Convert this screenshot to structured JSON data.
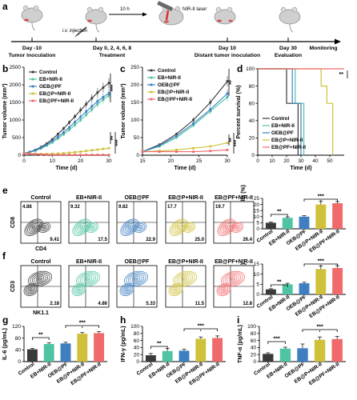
{
  "colors": {
    "control": "#3a3a3a",
    "eb_nir": "#4ec4a3",
    "oeb_pf": "#3d7fc1",
    "ebp_nir": "#cfc13a",
    "ebpf_nir": "#f0696b",
    "mouse": "#c9c9c9",
    "laser": "#d63a3a"
  },
  "panel_labels": [
    "a",
    "b",
    "c",
    "d",
    "e",
    "f",
    "g",
    "h",
    "i"
  ],
  "timeline": {
    "top_label": "10 h",
    "laser_label": "NIR-II laser",
    "injection_label": "i.v. injection",
    "monitoring_label": "Monitoring",
    "steps": [
      {
        "day": "Day -10",
        "event": "Tumor inoculation"
      },
      {
        "day": "Day 0, 2, 4, 6, 8",
        "event": "Treatment"
      },
      {
        "day": "Day 10",
        "event": "Distant tumor inoculation"
      },
      {
        "day": "Day 30",
        "event": "Evaluation"
      }
    ]
  },
  "groups": [
    "Control",
    "EB+NIR-II",
    "OEB@PF",
    "EB@P+NIR-II",
    "EB@PF+NIR-II"
  ],
  "flow_e": {
    "xlabel": "CD4",
    "ylabel": "CD8",
    "panels": [
      {
        "title": "Control",
        "ul": "4.88",
        "lr": "9.41"
      },
      {
        "title": "EB+NIR-II",
        "ul": "9.32",
        "lr": "17.5"
      },
      {
        "title": "OEB@PF",
        "ul": "9.82",
        "lr": "22.9"
      },
      {
        "title": "EB@P+NIR-II",
        "ul": "17.7",
        "lr": "25.0"
      },
      {
        "title": "EB@PF+NIR-II",
        "ul": "19.7",
        "lr": "26.4"
      }
    ]
  },
  "flow_f": {
    "xlabel": "NK1.1",
    "ylabel": "CD3",
    "panels": [
      {
        "title": "Control",
        "lr": "2.18"
      },
      {
        "title": "EB+NIR-II",
        "lr": "4.86"
      },
      {
        "title": "OEB@PF",
        "lr": "5.33"
      },
      {
        "title": "EB@P+NIR-II",
        "lr": "11.5"
      },
      {
        "title": "EB@PF+NIR-II",
        "lr": "12.8"
      }
    ]
  },
  "chart_data": [
    {
      "id": "b",
      "type": "line",
      "xlabel": "Time (d)",
      "ylabel": "Tumor volume (mm³)",
      "xlim": [
        0,
        30
      ],
      "ylim": [
        0,
        2500
      ],
      "xticks": [
        0,
        10,
        20,
        30
      ],
      "yticks": [
        0,
        500,
        1000,
        1500,
        2000,
        2500
      ],
      "x": [
        0,
        2,
        4,
        6,
        8,
        10,
        12,
        14,
        16,
        18,
        20,
        22,
        24,
        26,
        28,
        30
      ],
      "series": [
        {
          "name": "Control",
          "values": [
            50,
            90,
            150,
            230,
            330,
            450,
            600,
            760,
            930,
            1100,
            1280,
            1450,
            1620,
            1780,
            1920,
            2050
          ]
        },
        {
          "name": "EB+NIR-II",
          "values": [
            50,
            80,
            130,
            190,
            270,
            360,
            470,
            590,
            720,
            860,
            1000,
            1150,
            1300,
            1450,
            1580,
            1700
          ]
        },
        {
          "name": "OEB@PF",
          "values": [
            50,
            85,
            140,
            210,
            300,
            400,
            520,
            650,
            790,
            940,
            1090,
            1240,
            1390,
            1530,
            1650,
            1760
          ]
        },
        {
          "name": "EB@P+NIR-II",
          "values": [
            50,
            45,
            40,
            35,
            35,
            40,
            45,
            55,
            70,
            85,
            100,
            120,
            140,
            160,
            180,
            200
          ]
        },
        {
          "name": "EB@PF+NIR-II",
          "values": [
            50,
            40,
            30,
            20,
            15,
            10,
            10,
            10,
            10,
            10,
            10,
            10,
            10,
            10,
            10,
            10
          ]
        }
      ],
      "annotations": [
        "***",
        "**",
        "***"
      ]
    },
    {
      "id": "c",
      "type": "line",
      "xlabel": "Time (d)",
      "ylabel": "Tumor volume (mm³)",
      "xlim": [
        15,
        30
      ],
      "ylim": [
        0,
        250
      ],
      "xticks": [
        15,
        20,
        25,
        30
      ],
      "yticks": [
        0,
        50,
        100,
        150,
        200,
        250
      ],
      "x": [
        15,
        18,
        21,
        24,
        27,
        30
      ],
      "series": [
        {
          "name": "Control",
          "values": [
            10,
            30,
            60,
            100,
            150,
            210
          ]
        },
        {
          "name": "EB+NIR-II",
          "values": [
            10,
            25,
            50,
            85,
            125,
            165
          ]
        },
        {
          "name": "OEB@PF",
          "values": [
            10,
            27,
            55,
            90,
            130,
            175
          ]
        },
        {
          "name": "EB@P+NIR-II",
          "values": [
            10,
            12,
            15,
            20,
            25,
            35
          ]
        },
        {
          "name": "EB@PF+NIR-II",
          "values": [
            10,
            10,
            10,
            10,
            12,
            15
          ]
        }
      ],
      "annotations": [
        "**",
        "**",
        "***"
      ]
    },
    {
      "id": "d",
      "type": "line",
      "xlabel": "Time (d)",
      "ylabel": "Percent survival (%)",
      "xlim": [
        0,
        60
      ],
      "ylim": [
        0,
        100
      ],
      "xticks": [
        0,
        10,
        20,
        30,
        40,
        50
      ],
      "yticks": [
        0,
        20,
        40,
        60,
        80,
        100
      ],
      "series": [
        {
          "name": "Control",
          "points": [
            [
              0,
              100
            ],
            [
              20,
              100
            ],
            [
              20,
              60
            ],
            [
              28,
              60
            ],
            [
              28,
              0
            ]
          ]
        },
        {
          "name": "EB+NIR-II",
          "points": [
            [
              0,
              100
            ],
            [
              26,
              100
            ],
            [
              26,
              60
            ],
            [
              32,
              60
            ],
            [
              32,
              0
            ]
          ]
        },
        {
          "name": "OEB@PF",
          "points": [
            [
              0,
              100
            ],
            [
              24,
              100
            ],
            [
              24,
              60
            ],
            [
              30,
              60
            ],
            [
              30,
              0
            ]
          ]
        },
        {
          "name": "EB@P+NIR-II",
          "points": [
            [
              0,
              100
            ],
            [
              44,
              100
            ],
            [
              44,
              80
            ],
            [
              48,
              80
            ],
            [
              48,
              60
            ],
            [
              52,
              60
            ],
            [
              52,
              0
            ]
          ]
        },
        {
          "name": "EB@PF+NIR-II",
          "points": [
            [
              0,
              100
            ],
            [
              60,
              100
            ]
          ]
        }
      ],
      "annotations": [
        "**"
      ]
    },
    {
      "id": "e-bar",
      "type": "bar",
      "ylabel": "CD3⁺CD8⁺ T cells (%)",
      "ylim": [
        0,
        25
      ],
      "yticks": [
        0,
        5,
        10,
        15,
        20,
        25
      ],
      "categories": [
        "Control",
        "EB+NIR-II",
        "OEB@PF",
        "EB@P+NIR-II",
        "EB@PF+NIR-II"
      ],
      "values": [
        5,
        9,
        10,
        20,
        21
      ],
      "errors": [
        0.6,
        0.8,
        0.8,
        2.5,
        1.4
      ],
      "annotations": [
        "**",
        "***"
      ]
    },
    {
      "id": "f-bar",
      "type": "bar",
      "ylabel": "NK cells (%)",
      "ylim": [
        0,
        15
      ],
      "yticks": [
        0,
        5,
        10,
        15
      ],
      "categories": [
        "Control",
        "EB+NIR-II",
        "OEB@PF",
        "EB@P+NIR-II",
        "EB@PF+NIR-II"
      ],
      "values": [
        2.5,
        5,
        5.5,
        12.5,
        13
      ],
      "errors": [
        0.3,
        0.5,
        0.5,
        1.5,
        1.2
      ],
      "annotations": [
        "**",
        "***"
      ]
    },
    {
      "id": "g",
      "type": "bar",
      "ylabel": "IL-6 (pg/mL)",
      "ylim": [
        0,
        120
      ],
      "yticks": [
        0,
        40,
        80,
        120
      ],
      "categories": [
        "Control",
        "EB+NIR-II",
        "OEB@PF",
        "EB@P+NIR-II",
        "EB@PF+NIR-II"
      ],
      "values": [
        42,
        60,
        62,
        95,
        97
      ],
      "errors": [
        3,
        4,
        4,
        4,
        5
      ],
      "annotations": [
        "**",
        "***"
      ]
    },
    {
      "id": "h",
      "type": "bar",
      "ylabel": "IFN-γ (pg/mL)",
      "ylim": [
        0,
        100
      ],
      "yticks": [
        0,
        20,
        40,
        60,
        80,
        100
      ],
      "categories": [
        "Control",
        "EB+NIR-II",
        "OEB@PF",
        "EB@P+NIR-II",
        "EB@PF+NIR-II"
      ],
      "values": [
        18,
        30,
        31,
        65,
        67
      ],
      "errors": [
        5,
        7,
        4,
        5,
        6
      ],
      "annotations": [
        "**",
        "***"
      ]
    },
    {
      "id": "i",
      "type": "bar",
      "ylabel": "TNF-α (pg/mL)",
      "ylim": [
        0,
        100
      ],
      "yticks": [
        0,
        20,
        40,
        60,
        80,
        100
      ],
      "categories": [
        "Control",
        "EB+NIR-II",
        "OEB@PF",
        "EB@P+NIR-II",
        "EB@PF+NIR-II"
      ],
      "values": [
        22,
        37,
        38,
        62,
        64
      ],
      "errors": [
        3,
        4,
        12,
        8,
        8
      ],
      "annotations": [
        "***",
        "***"
      ]
    }
  ]
}
